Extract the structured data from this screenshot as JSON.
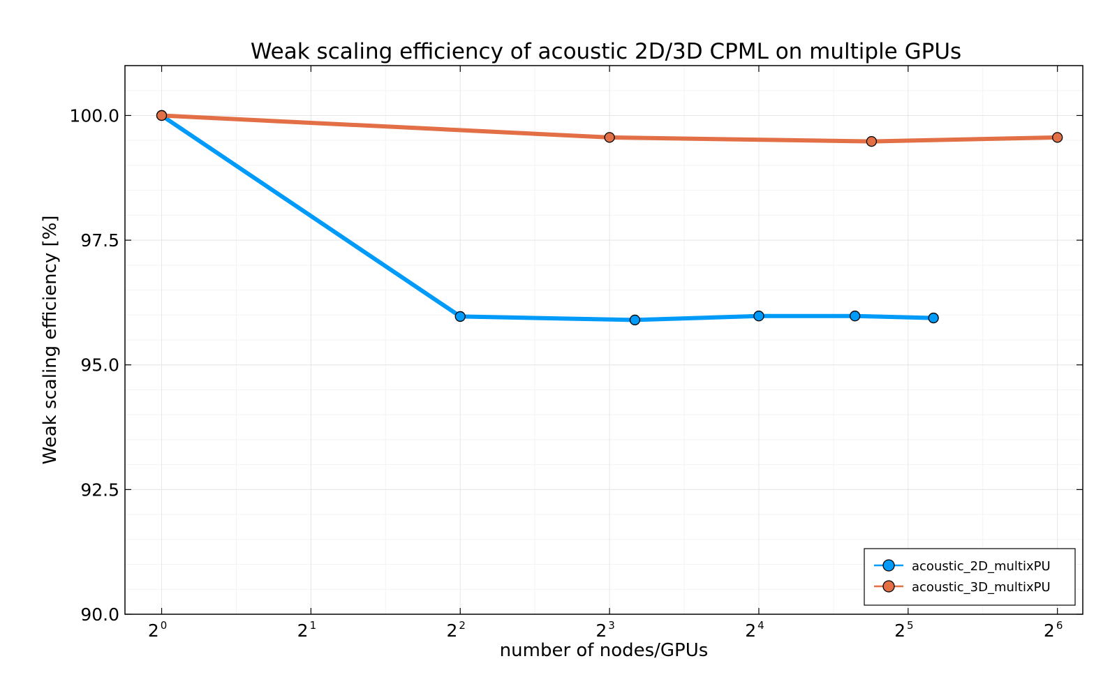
{
  "chart_data": {
    "type": "line",
    "title": "Weak scaling efficiency of acoustic 2D/3D CPML on multiple GPUs",
    "xlabel": "number of nodes/GPUs",
    "ylabel": "Weak scaling efficiency [%]",
    "x_scale": "log2",
    "xlim": [
      0.8434,
      72
    ],
    "ylim": [
      90,
      101
    ],
    "x_ticks": [
      {
        "value": 1,
        "base": "2",
        "exp": "0"
      },
      {
        "value": 2,
        "base": "2",
        "exp": "1"
      },
      {
        "value": 4,
        "base": "2",
        "exp": "2"
      },
      {
        "value": 8,
        "base": "2",
        "exp": "3"
      },
      {
        "value": 16,
        "base": "2",
        "exp": "4"
      },
      {
        "value": 32,
        "base": "2",
        "exp": "5"
      },
      {
        "value": 64,
        "base": "2",
        "exp": "6"
      }
    ],
    "y_ticks": [
      "90.0",
      "92.5",
      "95.0",
      "97.5",
      "100.0"
    ],
    "grid": true,
    "legend_position": "bottom-right",
    "series": [
      {
        "name": "acoustic_2D_multixPU",
        "color": "#009af9",
        "points": [
          [
            1,
            100.0
          ],
          [
            4,
            95.97
          ],
          [
            9,
            95.9
          ],
          [
            16,
            95.98
          ],
          [
            25,
            95.98
          ],
          [
            36,
            95.94
          ]
        ]
      },
      {
        "name": "acoustic_3D_multixPU",
        "color": "#e26f46",
        "points": [
          [
            1,
            100.0
          ],
          [
            8,
            99.56
          ],
          [
            27,
            99.48
          ],
          [
            64,
            99.56
          ]
        ]
      }
    ]
  }
}
